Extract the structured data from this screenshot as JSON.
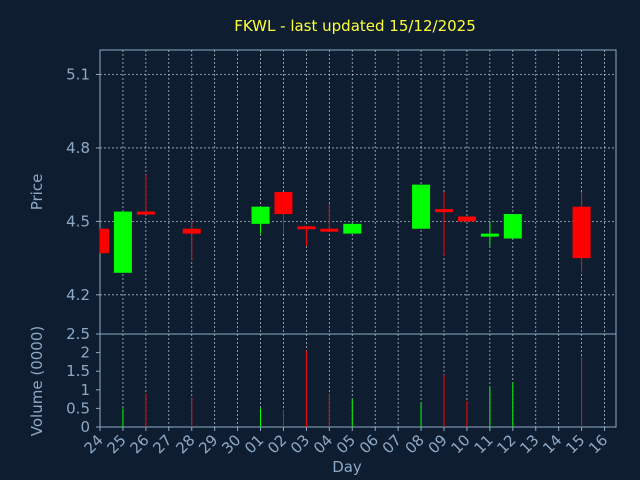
{
  "chart_data": {
    "type": "candlestick",
    "title": "FKWL - last updated 15/12/2025",
    "ylabel": "Price",
    "volume_label": "Volume (0000)",
    "xlabel": "Day",
    "x_ticks": [
      "24",
      "25",
      "26",
      "27",
      "28",
      "29",
      "30",
      "01",
      "02",
      "03",
      "04",
      "05",
      "06",
      "07",
      "08",
      "09",
      "10",
      "11",
      "12",
      "13",
      "14",
      "15",
      "16"
    ],
    "price_ylim": [
      4.04,
      5.2
    ],
    "price_ticks": [
      "5.1",
      "4.8",
      "4.5",
      "4.2"
    ],
    "volume_ylim": [
      0,
      2.5
    ],
    "volume_ticks": [
      "2.5",
      "2",
      "1.5",
      "1",
      "0.5",
      "0"
    ],
    "colors": {
      "up": "#00ff00",
      "down": "#ff0000",
      "grid": "#c8d4e0",
      "axis": "#8ea9c6",
      "title": "#ffff3a",
      "background": "#0e1e30"
    },
    "candles": [
      {
        "day": 24,
        "x": 0,
        "open": 4.47,
        "close": 4.37,
        "high": 4.47,
        "low": 4.37,
        "volume": 0
      },
      {
        "day": 25,
        "x": 1,
        "open": 4.29,
        "close": 4.54,
        "high": 4.54,
        "low": 4.29,
        "volume": 0.5
      },
      {
        "day": 26,
        "x": 2,
        "open": 4.54,
        "close": 4.53,
        "high": 4.69,
        "low": 4.53,
        "volume": 0.9
      },
      {
        "day": 28,
        "x": 4,
        "open": 4.47,
        "close": 4.45,
        "high": 4.5,
        "low": 4.34,
        "volume": 0.8
      },
      {
        "day": 1,
        "x": 7,
        "open": 4.49,
        "close": 4.56,
        "high": 4.56,
        "low": 4.45,
        "volume": 0.5
      },
      {
        "day": 2,
        "x": 8,
        "open": 4.62,
        "close": 4.53,
        "high": 4.62,
        "low": 4.45,
        "volume": 0.45
      },
      {
        "day": 3,
        "x": 9,
        "open": 4.48,
        "close": 4.47,
        "high": 4.48,
        "low": 4.4,
        "volume": 2.05
      },
      {
        "day": 4,
        "x": 10,
        "open": 4.47,
        "close": 4.46,
        "high": 4.57,
        "low": 4.46,
        "volume": 0.9
      },
      {
        "day": 5,
        "x": 11,
        "open": 4.45,
        "close": 4.49,
        "high": 4.49,
        "low": 4.45,
        "volume": 0.75
      },
      {
        "day": 8,
        "x": 14,
        "open": 4.47,
        "close": 4.65,
        "high": 4.65,
        "low": 4.47,
        "volume": 0.65
      },
      {
        "day": 9,
        "x": 15,
        "open": 4.55,
        "close": 4.54,
        "high": 4.62,
        "low": 4.36,
        "volume": 1.4
      },
      {
        "day": 10,
        "x": 16,
        "open": 4.52,
        "close": 4.5,
        "high": 4.52,
        "low": 4.5,
        "volume": 0.7
      },
      {
        "day": 11,
        "x": 17,
        "open": 4.44,
        "close": 4.45,
        "high": 4.5,
        "low": 4.4,
        "volume": 1.05
      },
      {
        "day": 12,
        "x": 18,
        "open": 4.43,
        "close": 4.53,
        "high": 4.53,
        "low": 4.43,
        "volume": 1.2
      },
      {
        "day": 15,
        "x": 21,
        "open": 4.56,
        "close": 4.35,
        "high": 4.62,
        "low": 4.29,
        "volume": 1.9
      }
    ]
  }
}
